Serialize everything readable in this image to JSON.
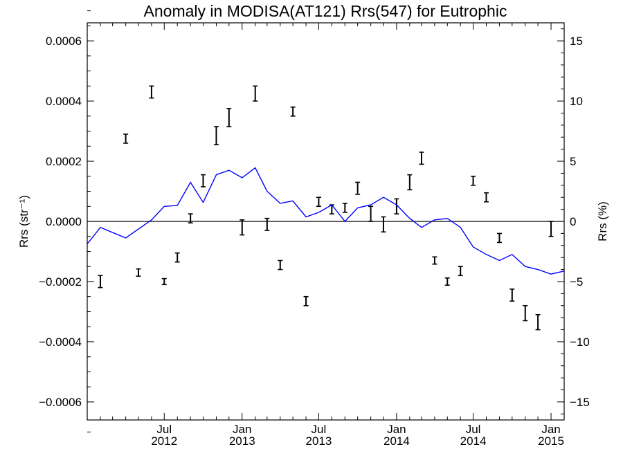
{
  "chart_data": {
    "type": "line",
    "title": "Anomaly in MODISA(AT121) Rrs(547) for Eutrophic",
    "ylabel_left": "Rrs (str⁻¹)",
    "ylabel_right": "Rrs (%)",
    "ylim_left": [
      -0.00066,
      0.00066
    ],
    "ylim_right": [
      -16.5,
      16.5
    ],
    "xlim": [
      "2012-01-01",
      "2015-02-01"
    ],
    "x_ticks": [
      {
        "month": "Jul",
        "year": "2012",
        "date": "2012-07-01"
      },
      {
        "month": "Jan",
        "year": "2013",
        "date": "2013-01-01"
      },
      {
        "month": "Jul",
        "year": "2013",
        "date": "2013-07-01"
      },
      {
        "month": "Jan",
        "year": "2014",
        "date": "2014-01-01"
      },
      {
        "month": "Jul",
        "year": "2014",
        "date": "2014-07-01"
      },
      {
        "month": "Jan",
        "year": "2015",
        "date": "2015-01-01"
      }
    ],
    "y_ticks_left": [
      "0.0006",
      "0.0004",
      "0.0002",
      "0.0000",
      "−0.0002",
      "−0.0004",
      "−0.0006"
    ],
    "y_tick_values_left": [
      0.0006,
      0.0004,
      0.0002,
      0.0,
      -0.0002,
      -0.0004,
      -0.0006
    ],
    "y_ticks_right": [
      "15",
      "10",
      "5",
      "0",
      "−5",
      "−10",
      "−15"
    ],
    "y_tick_values_right": [
      15,
      10,
      5,
      0,
      -5,
      -10,
      -15
    ],
    "zero_line": true,
    "series": [
      {
        "kind": "errorbar",
        "color": "#000000",
        "points": [
          {
            "date": "2012-02-01",
            "y": -0.0002,
            "err": 2e-05
          },
          {
            "date": "2012-04-01",
            "y": 0.000275,
            "err": 1.5e-05
          },
          {
            "date": "2012-05-01",
            "y": -0.00017,
            "err": 1.2e-05
          },
          {
            "date": "2012-06-01",
            "y": 0.00043,
            "err": 2e-05
          },
          {
            "date": "2012-07-01",
            "y": -0.0002,
            "err": 1e-05
          },
          {
            "date": "2012-08-01",
            "y": -0.00012,
            "err": 1.5e-05
          },
          {
            "date": "2012-09-01",
            "y": 1e-05,
            "err": 1.5e-05
          },
          {
            "date": "2012-10-01",
            "y": 0.000135,
            "err": 2e-05
          },
          {
            "date": "2012-11-01",
            "y": 0.000285,
            "err": 3e-05
          },
          {
            "date": "2012-12-01",
            "y": 0.000345,
            "err": 3e-05
          },
          {
            "date": "2013-01-01",
            "y": -2e-05,
            "err": 2.5e-05
          },
          {
            "date": "2013-02-01",
            "y": 0.000425,
            "err": 2.5e-05
          },
          {
            "date": "2013-03-01",
            "y": -1e-05,
            "err": 2e-05
          },
          {
            "date": "2013-04-01",
            "y": -0.000145,
            "err": 1.5e-05
          },
          {
            "date": "2013-05-01",
            "y": 0.000365,
            "err": 1.5e-05
          },
          {
            "date": "2013-06-01",
            "y": -0.000265,
            "err": 1.5e-05
          },
          {
            "date": "2013-07-01",
            "y": 6.5e-05,
            "err": 1.5e-05
          },
          {
            "date": "2013-08-01",
            "y": 4e-05,
            "err": 1.5e-05
          },
          {
            "date": "2013-09-01",
            "y": 4.5e-05,
            "err": 1.5e-05
          },
          {
            "date": "2013-10-01",
            "y": 0.00011,
            "err": 2e-05
          },
          {
            "date": "2013-11-01",
            "y": 2.5e-05,
            "err": 2.5e-05
          },
          {
            "date": "2013-12-01",
            "y": -1e-05,
            "err": 2.5e-05
          },
          {
            "date": "2014-01-01",
            "y": 5e-05,
            "err": 2.5e-05
          },
          {
            "date": "2014-02-01",
            "y": 0.00013,
            "err": 2.5e-05
          },
          {
            "date": "2014-03-01",
            "y": 0.00021,
            "err": 2e-05
          },
          {
            "date": "2014-04-01",
            "y": -0.00013,
            "err": 1.2e-05
          },
          {
            "date": "2014-05-01",
            "y": -0.0002,
            "err": 1.2e-05
          },
          {
            "date": "2014-06-01",
            "y": -0.000165,
            "err": 1.5e-05
          },
          {
            "date": "2014-07-01",
            "y": 0.000135,
            "err": 1.5e-05
          },
          {
            "date": "2014-08-01",
            "y": 8e-05,
            "err": 1.5e-05
          },
          {
            "date": "2014-09-01",
            "y": -5.5e-05,
            "err": 1.5e-05
          },
          {
            "date": "2014-10-01",
            "y": -0.000245,
            "err": 2e-05
          },
          {
            "date": "2014-11-01",
            "y": -0.000305,
            "err": 2.5e-05
          },
          {
            "date": "2014-12-01",
            "y": -0.000335,
            "err": 2.5e-05
          },
          {
            "date": "2015-01-01",
            "y": -2.5e-05,
            "err": 2.5e-05
          }
        ]
      },
      {
        "kind": "line",
        "color": "#0000ff",
        "points": [
          {
            "date": "2012-01-01",
            "y": -7.5e-05
          },
          {
            "date": "2012-02-01",
            "y": -2e-05
          },
          {
            "date": "2012-04-01",
            "y": -5.5e-05
          },
          {
            "date": "2012-06-01",
            "y": 5e-06
          },
          {
            "date": "2012-07-01",
            "y": 5e-05
          },
          {
            "date": "2012-08-01",
            "y": 5.3e-05
          },
          {
            "date": "2012-09-01",
            "y": 0.00013
          },
          {
            "date": "2012-10-01",
            "y": 6.3e-05
          },
          {
            "date": "2012-11-01",
            "y": 0.000155
          },
          {
            "date": "2012-12-01",
            "y": 0.00017
          },
          {
            "date": "2013-01-01",
            "y": 0.000145
          },
          {
            "date": "2013-02-01",
            "y": 0.000178
          },
          {
            "date": "2013-03-01",
            "y": 0.0001
          },
          {
            "date": "2013-04-01",
            "y": 6e-05
          },
          {
            "date": "2013-05-01",
            "y": 6.8e-05
          },
          {
            "date": "2013-06-01",
            "y": 1.5e-05
          },
          {
            "date": "2013-07-01",
            "y": 3e-05
          },
          {
            "date": "2013-08-01",
            "y": 5.5e-05
          },
          {
            "date": "2013-09-01",
            "y": 0.0
          },
          {
            "date": "2013-10-01",
            "y": 4.5e-05
          },
          {
            "date": "2013-11-01",
            "y": 5.5e-05
          },
          {
            "date": "2013-12-01",
            "y": 8e-05
          },
          {
            "date": "2014-01-01",
            "y": 5.5e-05
          },
          {
            "date": "2014-02-01",
            "y": 1e-05
          },
          {
            "date": "2014-03-01",
            "y": -2e-05
          },
          {
            "date": "2014-04-01",
            "y": 5e-06
          },
          {
            "date": "2014-05-01",
            "y": 1e-05
          },
          {
            "date": "2014-06-01",
            "y": -2e-05
          },
          {
            "date": "2014-07-01",
            "y": -8.5e-05
          },
          {
            "date": "2014-08-01",
            "y": -0.00011
          },
          {
            "date": "2014-09-01",
            "y": -0.00013
          },
          {
            "date": "2014-10-01",
            "y": -0.00011
          },
          {
            "date": "2014-11-01",
            "y": -0.00015
          },
          {
            "date": "2014-12-01",
            "y": -0.00016
          },
          {
            "date": "2015-01-01",
            "y": -0.000175
          },
          {
            "date": "2015-02-01",
            "y": -0.000165
          }
        ]
      }
    ]
  }
}
